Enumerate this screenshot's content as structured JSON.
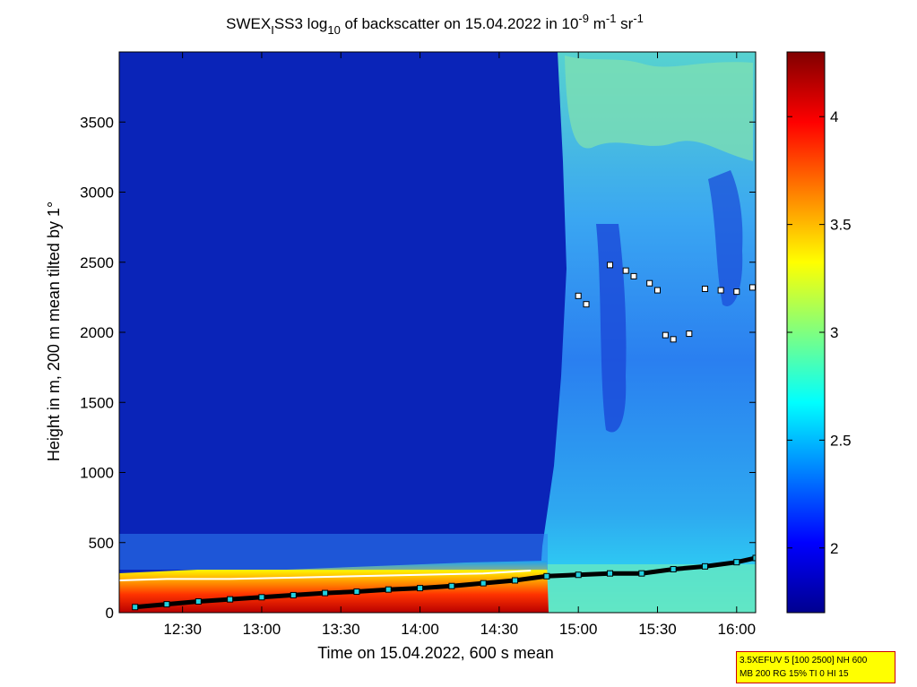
{
  "chart_data": {
    "type": "heatmap",
    "title": {
      "p1": "SWEX",
      "p1_sub": "I",
      "p2": "SS3 log",
      "p2_sub": "10",
      "p3": " of backscatter on 15.04.2022 in 10",
      "p3_sup": "-9",
      "p4": " m",
      "p4_sup": "-1",
      "p5": " sr",
      "p5_sup": "-1"
    },
    "xlabel": "Time on 15.04.2022, 600 s mean",
    "ylabel": "Height in m, 200 m mean tilted by 1°",
    "x_ticks": [
      "12:30",
      "13:00",
      "13:30",
      "14:00",
      "14:30",
      "15:00",
      "15:30",
      "16:00"
    ],
    "x_tick_hours": [
      12.5,
      13.0,
      13.5,
      14.0,
      14.5,
      15.0,
      15.5,
      16.0
    ],
    "xlim_hours": [
      12.1,
      16.12
    ],
    "y_ticks": [
      "0",
      "500",
      "1000",
      "1500",
      "2000",
      "2500",
      "3000",
      "3500"
    ],
    "y_tick_values": [
      0,
      500,
      1000,
      1500,
      2000,
      2500,
      3000,
      3500
    ],
    "ylim": [
      0,
      4000
    ],
    "colorbar": {
      "ticks": [
        "2",
        "2.5",
        "3",
        "3.5",
        "4"
      ],
      "tick_values": [
        2,
        2.5,
        3,
        3.5,
        4
      ],
      "range": [
        1.7,
        4.3
      ],
      "colormap": "jet"
    },
    "cloud_base_hours": [
      12.2,
      12.4,
      12.6,
      12.8,
      13.0,
      13.2,
      13.4,
      13.6,
      13.8,
      14.0,
      14.2,
      14.4,
      14.6,
      14.8,
      15.0,
      15.2,
      15.4,
      15.6,
      15.8,
      16.0,
      16.12
    ],
    "cloud_base_m": [
      40,
      60,
      80,
      95,
      110,
      125,
      140,
      150,
      165,
      175,
      190,
      210,
      230,
      260,
      270,
      280,
      280,
      310,
      330,
      360,
      390
    ],
    "boundary_layer_top_hours": [
      12.1,
      12.4,
      12.8,
      13.2,
      13.6,
      14.0,
      14.4,
      14.7
    ],
    "boundary_layer_top_m": [
      230,
      240,
      240,
      250,
      260,
      270,
      280,
      300
    ],
    "cloud_layer_hours": [
      15.0,
      15.05,
      15.2,
      15.3,
      15.35,
      15.45,
      15.5,
      15.55,
      15.6,
      15.7,
      15.8,
      15.9,
      16.0,
      16.1
    ],
    "cloud_layer_m": [
      2260,
      2200,
      2480,
      2440,
      2400,
      2350,
      2300,
      1980,
      1950,
      1990,
      2310,
      2300,
      2290,
      2320
    ],
    "info_line1": "3.5XEFUV 5 [100 2500] NH 600",
    "info_line2": "MB 200 RG 15% TI 0 HI 15"
  }
}
